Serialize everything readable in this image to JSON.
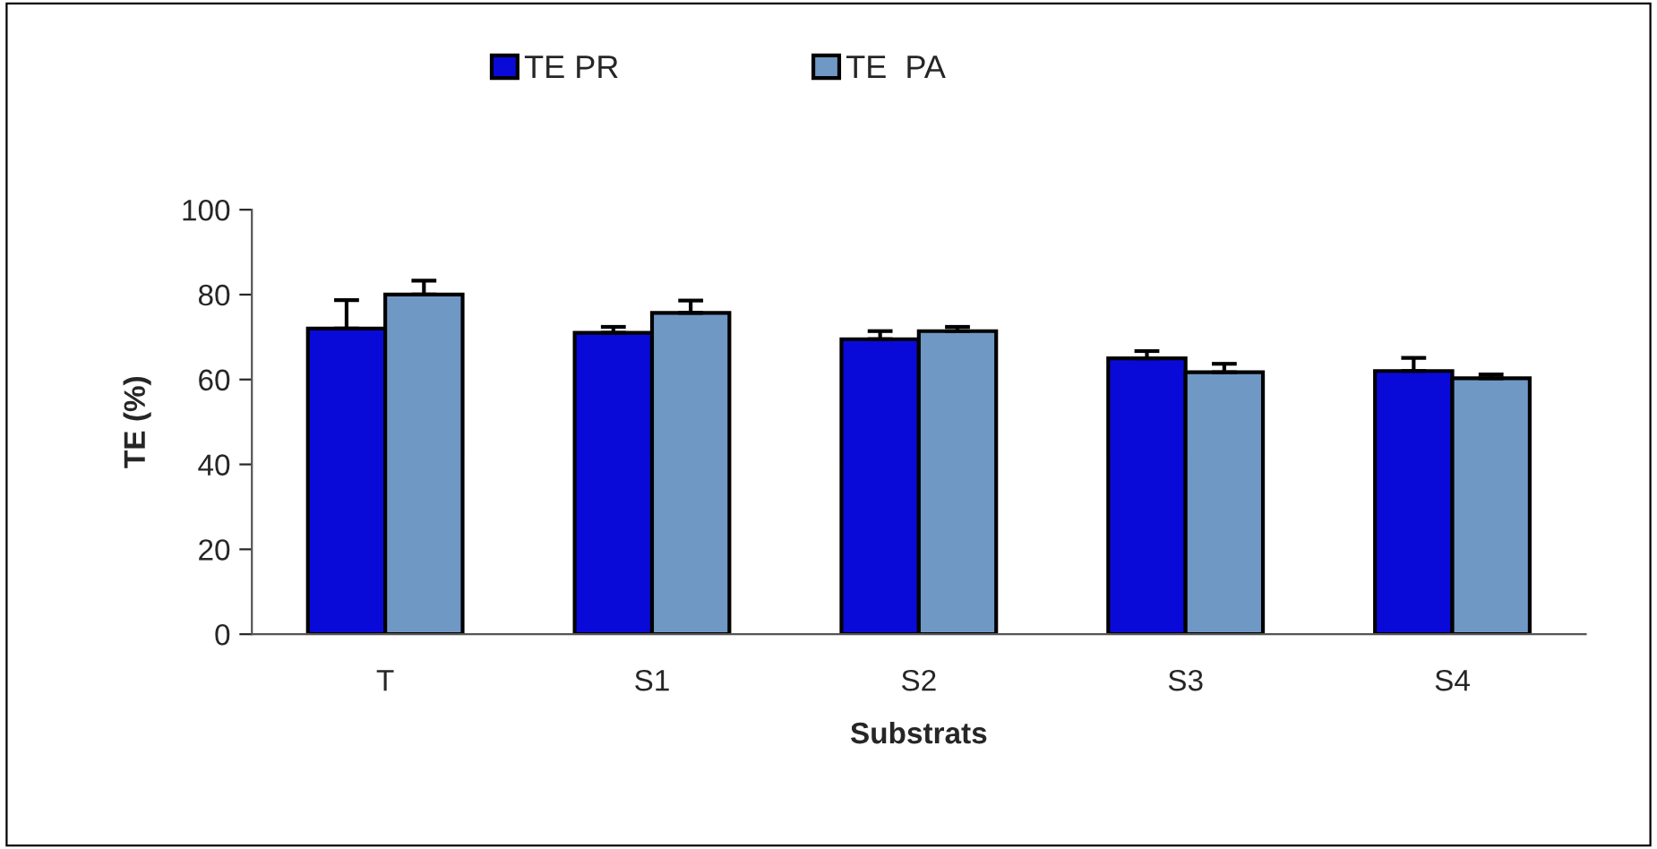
{
  "chart_data": {
    "type": "bar",
    "xlabel": "Substrats",
    "ylabel": "TE (%)",
    "categories": [
      "T",
      "S1",
      "S2",
      "S3",
      "S4"
    ],
    "series": [
      {
        "name": "TE PR",
        "color": "#0a0ad8",
        "values": [
          72,
          71,
          69.5,
          65,
          62
        ],
        "errors": [
          [
            72,
            78.7
          ],
          [
            71,
            72.4
          ],
          [
            69.5,
            71.4
          ],
          [
            65,
            66.7
          ],
          [
            62,
            65.1
          ]
        ]
      },
      {
        "name": "TE  PA",
        "color": "#6f98c4",
        "values": [
          80,
          75.7,
          71.4,
          61.7,
          60.3
        ],
        "errors": [
          [
            80,
            83.3
          ],
          [
            75.7,
            78.6
          ],
          [
            71.4,
            72.4
          ],
          [
            61.7,
            63.7
          ],
          [
            60.3,
            61.2
          ]
        ]
      }
    ],
    "ylim": [
      0,
      100
    ],
    "yticks": [
      0,
      20,
      40,
      60,
      80,
      100
    ],
    "grid": false,
    "legend": "top"
  }
}
